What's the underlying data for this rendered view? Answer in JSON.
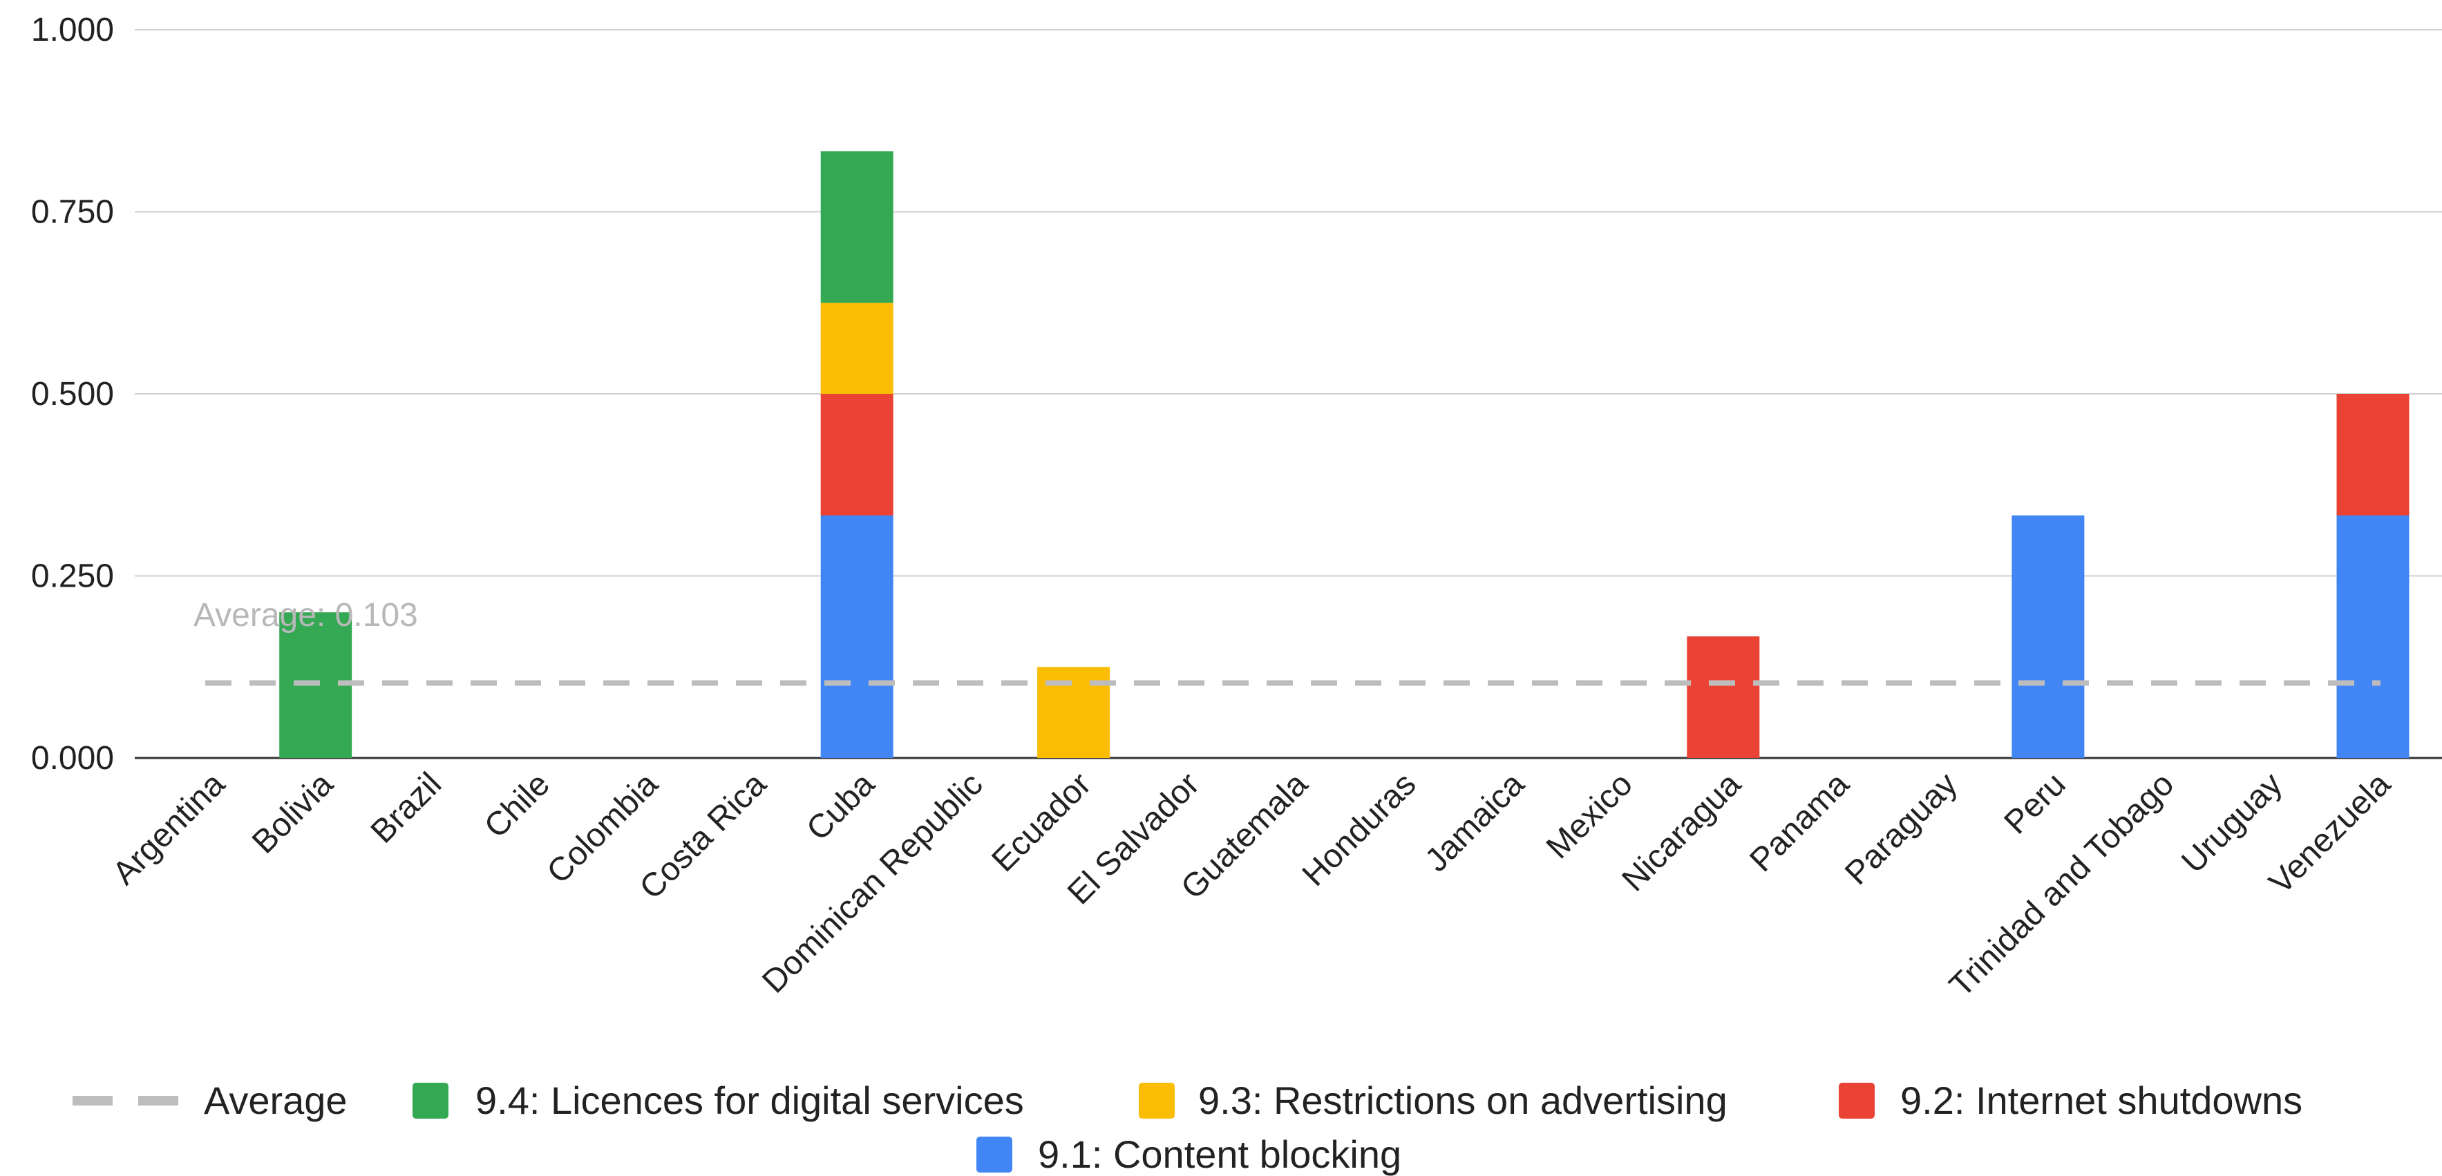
{
  "chart_data": {
    "type": "bar",
    "stacked": true,
    "categories": [
      "Argentina",
      "Bolivia",
      "Brazil",
      "Chile",
      "Colombia",
      "Costa Rica",
      "Cuba",
      "Dominican Republic",
      "Ecuador",
      "El Salvador",
      "Guatemala",
      "Honduras",
      "Jamaica",
      "Mexico",
      "Nicaragua",
      "Panama",
      "Paraguay",
      "Peru",
      "Trinidad and Tobago",
      "Uruguay",
      "Venezuela"
    ],
    "series": [
      {
        "name": "9.1: Content blocking",
        "color": "#4285f4",
        "values": [
          0,
          0,
          0,
          0,
          0,
          0,
          0.333,
          0,
          0,
          0,
          0,
          0,
          0,
          0,
          0,
          0,
          0,
          0.333,
          0,
          0,
          0.333
        ]
      },
      {
        "name": "9.2: Internet shutdowns",
        "color": "#ea4335",
        "values": [
          0,
          0,
          0,
          0,
          0,
          0,
          0.167,
          0,
          0,
          0,
          0,
          0,
          0,
          0,
          0.167,
          0,
          0,
          0,
          0,
          0,
          0.167
        ]
      },
      {
        "name": "9.3: Restrictions on advertising",
        "color": "#fbbc04",
        "values": [
          0,
          0,
          0,
          0,
          0,
          0,
          0.125,
          0,
          0.125,
          0,
          0,
          0,
          0,
          0,
          0,
          0,
          0,
          0,
          0,
          0,
          0
        ]
      },
      {
        "name": "9.4: Licences for digital services",
        "color": "#34a853",
        "values": [
          0,
          0.2,
          0,
          0,
          0,
          0,
          0.208,
          0,
          0,
          0,
          0,
          0,
          0,
          0,
          0,
          0,
          0,
          0,
          0,
          0,
          0
        ]
      }
    ],
    "average": {
      "name": "Average",
      "value": 0.103,
      "label": "Average: 0.103",
      "color": "#bdbdbd"
    },
    "ylim": [
      0,
      1
    ],
    "yticks": [
      "0.000",
      "0.250",
      "0.500",
      "0.750",
      "1.000"
    ],
    "legend_order": [
      "Average",
      "9.4: Licences for digital services",
      "9.3: Restrictions on advertising",
      "9.2: Internet shutdowns",
      "9.1: Content blocking"
    ],
    "legend_position": "bottom",
    "grid": true,
    "title": "",
    "xlabel": "",
    "ylabel": ""
  }
}
